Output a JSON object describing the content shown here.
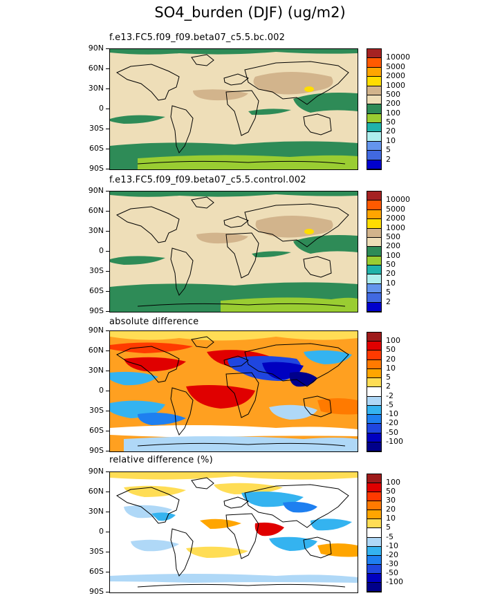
{
  "title": "SO4_burden (DJF) (ug/m2)",
  "latitude_ticks": [
    "90N",
    "60N",
    "30N",
    "0",
    "30S",
    "60S",
    "90S"
  ],
  "panels": [
    {
      "label": "f.e13.FC5.f09_f09.beta07_c5.5.bc.002",
      "background_color": "#eedeb8",
      "legend_labels": [
        "10000",
        "5000",
        "2000",
        "1000",
        "500",
        "200",
        "100",
        "50",
        "20",
        "10",
        "5",
        "2"
      ],
      "legend_colors": [
        "#a52222",
        "#ff5a00",
        "#ffa500",
        "#ffdd00",
        "#d2b48c",
        "#eedeb8",
        "#2e8b57",
        "#9acd32",
        "#20b2aa",
        "#afeeee",
        "#6495ed",
        "#4169e1",
        "#0000cd"
      ]
    },
    {
      "label": "f.e13.FC5.f09_f09.beta07_c5.5.control.002",
      "background_color": "#eedeb8",
      "legend_labels": [
        "10000",
        "5000",
        "2000",
        "1000",
        "500",
        "200",
        "100",
        "50",
        "20",
        "10",
        "5",
        "2"
      ],
      "legend_colors": [
        "#a52222",
        "#ff5a00",
        "#ffa500",
        "#ffdd00",
        "#d2b48c",
        "#eedeb8",
        "#2e8b57",
        "#9acd32",
        "#20b2aa",
        "#afeeee",
        "#6495ed",
        "#4169e1",
        "#0000cd"
      ]
    },
    {
      "label": "absolute difference",
      "background_color": "#ffa020",
      "legend_labels": [
        "100",
        "50",
        "20",
        "10",
        "5",
        "2",
        "-2",
        "-5",
        "-10",
        "-20",
        "-50",
        "-100"
      ],
      "legend_colors": [
        "#9e1b1b",
        "#e00000",
        "#ff3a00",
        "#ff7a00",
        "#ffa500",
        "#ffdd55",
        "#ffffff",
        "#afd8f7",
        "#34b3f0",
        "#1e7ff0",
        "#1f46e0",
        "#0000c0",
        "#00008b"
      ]
    },
    {
      "label": "relative difference (%)",
      "background_color": "#ffffff",
      "legend_labels": [
        "100",
        "50",
        "30",
        "20",
        "10",
        "5",
        "-5",
        "-10",
        "-20",
        "-30",
        "-50",
        "-100"
      ],
      "legend_colors": [
        "#9e1b1b",
        "#e00000",
        "#ff3a00",
        "#ff7a00",
        "#ffa500",
        "#ffdd55",
        "#ffffff",
        "#afd8f7",
        "#34b3f0",
        "#1e7ff0",
        "#1f46e0",
        "#0000c0",
        "#00008b"
      ]
    }
  ]
}
